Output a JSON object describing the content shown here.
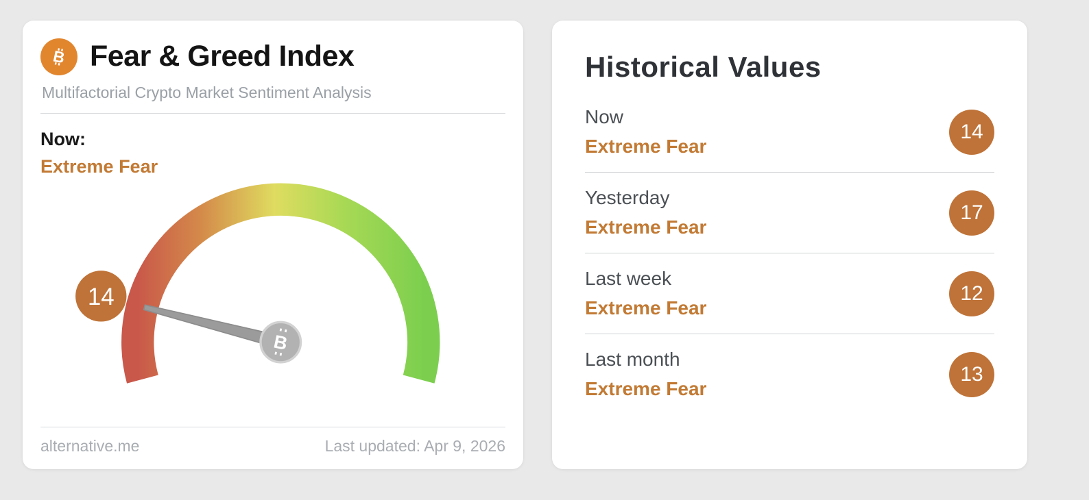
{
  "colors": {
    "page_bg": "#e9e9e9",
    "accent": "#c27a34",
    "badge_bg": "#bf7338",
    "btc_orange": "#e2862e"
  },
  "gauge_card": {
    "title": "Fear & Greed Index",
    "subtitle": "Multifactorial Crypto Market Sentiment Analysis",
    "now_label": "Now:",
    "now_sentiment": "Extreme Fear",
    "footer_left": "alternative.me",
    "footer_right": "Last updated: Apr 9, 2026",
    "bitcoin_glyph": "B"
  },
  "historical_card": {
    "title": "Historical Values",
    "rows": [
      {
        "label": "Now",
        "sentiment": "Extreme Fear",
        "value": "14"
      },
      {
        "label": "Yesterday",
        "sentiment": "Extreme Fear",
        "value": "17"
      },
      {
        "label": "Last week",
        "sentiment": "Extreme Fear",
        "value": "12"
      },
      {
        "label": "Last month",
        "sentiment": "Extreme Fear",
        "value": "13"
      }
    ]
  },
  "chart_data": {
    "type": "gauge",
    "title": "Fear & Greed Index",
    "value": 14,
    "value_label": "Extreme Fear",
    "min": 0,
    "max": 100,
    "start_angle_deg": 195,
    "sweep_deg": 210,
    "scale_colors": [
      "#c9584a",
      "#d48a4a",
      "#dfdc60",
      "#a8d955",
      "#7ccf4e"
    ],
    "needle_color": "#9b9b9b",
    "series": [
      {
        "name": "Now",
        "value": 14,
        "label": "Extreme Fear"
      },
      {
        "name": "Yesterday",
        "value": 17,
        "label": "Extreme Fear"
      },
      {
        "name": "Last week",
        "value": 12,
        "label": "Extreme Fear"
      },
      {
        "name": "Last month",
        "value": 13,
        "label": "Extreme Fear"
      }
    ]
  }
}
